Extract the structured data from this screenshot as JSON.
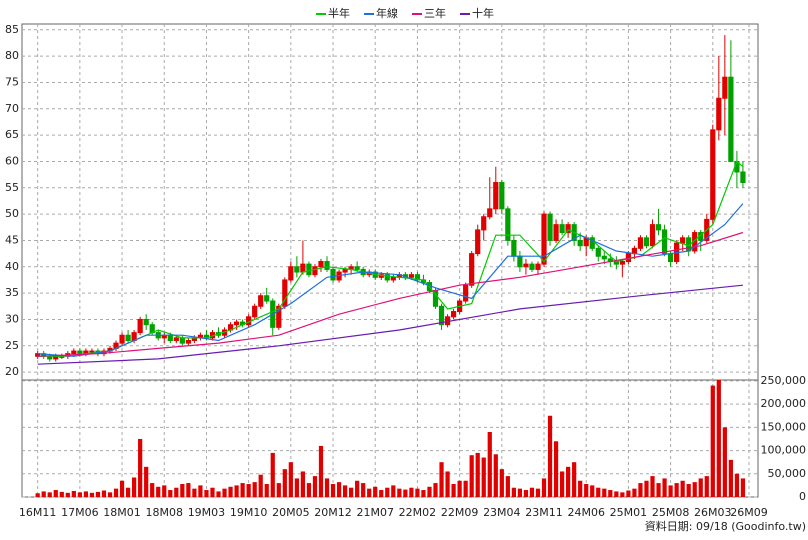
{
  "chart_data": {
    "type": "candlestick",
    "legend": "top",
    "grid": true,
    "up_color": "#e00000",
    "down_color": "#00a000",
    "note": "資料日期: 09/18 (Goodinfo.tw)",
    "xlim": [
      -2.6,
      119.5
    ],
    "xticks": [
      {
        "value": 0,
        "label": "16M11"
      },
      {
        "value": 7,
        "label": "17M06"
      },
      {
        "value": 14,
        "label": "18M01"
      },
      {
        "value": 21,
        "label": "18M08"
      },
      {
        "value": 28,
        "label": "19M03"
      },
      {
        "value": 35,
        "label": "19M10"
      },
      {
        "value": 42,
        "label": "20M05"
      },
      {
        "value": 49,
        "label": "20M12"
      },
      {
        "value": 56,
        "label": "21M07"
      },
      {
        "value": 63,
        "label": "22M02"
      },
      {
        "value": 70,
        "label": "22M09"
      },
      {
        "value": 77,
        "label": "23M04"
      },
      {
        "value": 84,
        "label": "23M11"
      },
      {
        "value": 91,
        "label": "24M06"
      },
      {
        "value": 98,
        "label": "25M01"
      },
      {
        "value": 105,
        "label": "25M08"
      },
      {
        "value": 112,
        "label": "26M03"
      },
      {
        "value": 118,
        "label": "26M09"
      }
    ],
    "ylim": [
      18.5,
      86.1
    ],
    "yticks": [
      20,
      25,
      30,
      35,
      40,
      45,
      50,
      55,
      60,
      65,
      70,
      75,
      80,
      85
    ],
    "y2lim": [
      0,
      252000
    ],
    "y2ticks": [
      {
        "value": 0,
        "label": "0"
      },
      {
        "value": 50000,
        "label": "50,000"
      },
      {
        "value": 100000,
        "label": "100,000"
      },
      {
        "value": 150000,
        "label": "150,000"
      },
      {
        "value": 200000,
        "label": "200,000"
      },
      {
        "value": 250000,
        "label": "250,000"
      }
    ],
    "ohlc": [
      [
        23,
        24,
        22.5,
        23.5
      ],
      [
        23.5,
        24,
        22.5,
        23
      ],
      [
        23,
        23.5,
        22,
        22.5
      ],
      [
        22.5,
        23.5,
        22,
        23
      ],
      [
        23,
        23.5,
        22.5,
        23
      ],
      [
        23,
        24,
        22.5,
        23.5
      ],
      [
        23.5,
        24.5,
        23,
        24
      ],
      [
        24,
        24.5,
        23,
        23.5
      ],
      [
        23.5,
        24.5,
        23,
        24
      ],
      [
        24,
        24.5,
        23.5,
        24
      ],
      [
        24,
        24.5,
        23,
        23.5
      ],
      [
        23.5,
        24.5,
        23,
        24
      ],
      [
        24,
        25,
        23.5,
        24.5
      ],
      [
        24.5,
        26,
        24,
        25.5
      ],
      [
        25.5,
        27.5,
        25,
        27
      ],
      [
        27,
        28,
        25.5,
        26
      ],
      [
        26,
        28,
        25.5,
        27.5
      ],
      [
        27.5,
        30.5,
        27,
        30
      ],
      [
        30,
        31,
        28,
        29
      ],
      [
        29,
        29.5,
        27,
        27.5
      ],
      [
        27.5,
        28,
        26,
        26.5
      ],
      [
        26.5,
        27.5,
        25.5,
        27
      ],
      [
        27,
        27.5,
        25.5,
        26
      ],
      [
        26,
        27,
        25.5,
        26.5
      ],
      [
        26.5,
        27,
        25,
        25.5
      ],
      [
        25.5,
        26.5,
        25,
        26
      ],
      [
        26,
        27,
        25.5,
        26.5
      ],
      [
        26.5,
        27.5,
        26,
        27
      ],
      [
        27,
        28,
        26,
        26.5
      ],
      [
        26.5,
        28,
        26,
        27.5
      ],
      [
        27.5,
        28.5,
        26.5,
        27
      ],
      [
        27,
        28.5,
        26.5,
        28
      ],
      [
        28,
        29.5,
        27.5,
        29
      ],
      [
        29,
        30,
        28,
        29.5
      ],
      [
        29.5,
        30,
        28.5,
        29
      ],
      [
        29,
        31,
        28.5,
        30.5
      ],
      [
        30.5,
        33,
        30,
        32.5
      ],
      [
        32.5,
        35,
        32,
        34.5
      ],
      [
        34.5,
        36,
        33,
        33.5
      ],
      [
        33.5,
        34,
        27,
        28.5
      ],
      [
        28.5,
        33,
        28,
        32.5
      ],
      [
        32.5,
        38,
        32,
        37.5
      ],
      [
        37.5,
        41,
        37,
        40
      ],
      [
        40,
        42,
        38,
        39
      ],
      [
        39,
        45,
        38.5,
        40.5
      ],
      [
        40.5,
        41,
        38,
        38.5
      ],
      [
        38.5,
        40.5,
        38,
        40
      ],
      [
        40,
        41.5,
        39,
        41
      ],
      [
        41,
        42,
        39,
        39.5
      ],
      [
        39.5,
        40,
        37,
        37.5
      ],
      [
        37.5,
        39.5,
        37,
        39
      ],
      [
        39,
        40,
        38,
        39.5
      ],
      [
        39.5,
        40.5,
        38.5,
        40
      ],
      [
        40,
        41,
        39,
        39.5
      ],
      [
        39.5,
        40,
        38,
        38.5
      ],
      [
        38.5,
        39.5,
        38,
        39
      ],
      [
        39,
        39.5,
        37.5,
        38
      ],
      [
        38,
        39,
        37.5,
        38.5
      ],
      [
        38.5,
        39,
        37,
        37.5
      ],
      [
        37.5,
        38.5,
        37,
        38
      ],
      [
        38,
        39,
        37.5,
        38.5
      ],
      [
        38.5,
        39,
        37.5,
        38
      ],
      [
        38,
        39,
        37.5,
        38.5
      ],
      [
        38.5,
        39,
        37,
        37.5
      ],
      [
        37.5,
        38.5,
        36.5,
        37
      ],
      [
        37,
        37.5,
        35,
        35.5
      ],
      [
        35.5,
        36,
        32,
        32.5
      ],
      [
        32.5,
        33,
        28,
        29
      ],
      [
        29,
        31,
        28.5,
        30.5
      ],
      [
        30.5,
        32,
        30,
        31.5
      ],
      [
        31.5,
        34,
        31,
        33.5
      ],
      [
        33.5,
        37,
        33,
        36.5
      ],
      [
        36.5,
        43,
        36,
        42.5
      ],
      [
        42.5,
        48,
        42,
        47
      ],
      [
        47,
        50,
        45,
        49.5
      ],
      [
        49.5,
        57,
        49,
        51
      ],
      [
        51,
        59,
        50,
        56
      ],
      [
        56,
        56.5,
        50,
        51
      ],
      [
        51,
        51.5,
        44,
        45
      ],
      [
        45,
        46,
        41,
        42
      ],
      [
        42,
        43,
        39,
        40
      ],
      [
        40,
        41.5,
        38.5,
        40.5
      ],
      [
        40.5,
        41,
        39,
        39.5
      ],
      [
        39.5,
        41,
        38.5,
        40.5
      ],
      [
        40.5,
        50.5,
        40,
        50
      ],
      [
        50,
        50.5,
        44,
        45
      ],
      [
        45,
        49,
        44.5,
        48
      ],
      [
        48,
        49,
        46,
        46.5
      ],
      [
        46.5,
        48.5,
        45.5,
        48
      ],
      [
        48,
        48.5,
        44,
        45
      ],
      [
        45,
        46.5,
        43,
        44
      ],
      [
        44,
        46,
        42,
        45.5
      ],
      [
        45.5,
        46,
        43,
        43.5
      ],
      [
        43.5,
        44,
        41,
        42
      ],
      [
        42,
        43,
        40.5,
        41.5
      ],
      [
        41.5,
        42.5,
        40,
        41
      ],
      [
        41,
        42,
        39.5,
        40.5
      ],
      [
        40.5,
        41.5,
        38,
        41
      ],
      [
        41,
        43,
        40.5,
        42.5
      ],
      [
        42.5,
        44,
        41.5,
        43.5
      ],
      [
        43.5,
        46,
        43,
        45.5
      ],
      [
        45.5,
        46,
        43.5,
        44
      ],
      [
        44,
        49,
        43.5,
        48
      ],
      [
        48,
        51,
        46,
        47
      ],
      [
        47,
        48,
        42,
        42.5
      ],
      [
        42.5,
        43,
        40,
        41
      ],
      [
        41,
        45,
        40.5,
        44.5
      ],
      [
        44.5,
        46,
        43,
        45.5
      ],
      [
        45.5,
        46,
        42,
        43
      ],
      [
        43,
        47,
        42.5,
        46.5
      ],
      [
        46.5,
        47,
        43,
        45
      ],
      [
        45,
        50,
        44.5,
        49
      ],
      [
        49,
        67,
        48,
        66
      ],
      [
        66,
        80,
        64,
        72
      ],
      [
        72,
        84,
        65,
        76
      ],
      [
        76,
        83,
        60,
        60
      ],
      [
        60,
        62,
        55,
        58
      ],
      [
        58,
        60,
        55,
        56
      ]
    ],
    "volume": {
      "axis": "y2",
      "color": "#e00000",
      "values": [
        8000,
        12000,
        10000,
        15000,
        11000,
        9000,
        13000,
        10000,
        12000,
        9000,
        11000,
        14000,
        10000,
        18000,
        35000,
        20000,
        42000,
        125000,
        65000,
        30000,
        22000,
        25000,
        15000,
        20000,
        28000,
        30000,
        18000,
        25000,
        15000,
        20000,
        12000,
        18000,
        22000,
        25000,
        30000,
        28000,
        32000,
        48000,
        28000,
        95000,
        30000,
        60000,
        75000,
        40000,
        55000,
        30000,
        45000,
        110000,
        40000,
        28000,
        32000,
        25000,
        20000,
        35000,
        30000,
        18000,
        22000,
        15000,
        20000,
        25000,
        18000,
        16000,
        20000,
        18000,
        15000,
        22000,
        30000,
        75000,
        55000,
        28000,
        35000,
        35000,
        90000,
        95000,
        85000,
        140000,
        92000,
        60000,
        45000,
        20000,
        18000,
        15000,
        20000,
        18000,
        40000,
        175000,
        120000,
        55000,
        65000,
        75000,
        35000,
        28000,
        25000,
        20000,
        18000,
        15000,
        12000,
        10000,
        14000,
        18000,
        30000,
        35000,
        45000,
        30000,
        40000,
        25000,
        30000,
        35000,
        28000,
        32000,
        40000,
        45000,
        240000,
        255000,
        150000,
        80000,
        50000,
        40000
      ]
    },
    "series": [
      {
        "name": "半年",
        "color": "#00cc00",
        "x": [
          0,
          4,
          8,
          12,
          16,
          20,
          24,
          28,
          32,
          36,
          40,
          44,
          48,
          52,
          56,
          60,
          64,
          68,
          72,
          76,
          80,
          84,
          88,
          92,
          96,
          100,
          104,
          108,
          112,
          116,
          117
        ],
        "values": [
          23,
          23,
          23.5,
          24,
          26,
          28,
          26.5,
          26.5,
          28,
          30,
          32,
          39,
          40,
          39.5,
          38.5,
          38,
          37.5,
          32,
          33,
          46,
          46,
          41,
          47,
          45,
          41,
          42,
          45.5,
          44,
          48,
          60,
          59
        ]
      },
      {
        "name": "年線",
        "color": "#1e6fe0",
        "x": [
          0,
          6,
          12,
          18,
          24,
          30,
          36,
          42,
          48,
          54,
          60,
          66,
          72,
          78,
          84,
          90,
          96,
          102,
          108,
          114,
          117
        ],
        "values": [
          23.5,
          23,
          24,
          27,
          27,
          26,
          29,
          33,
          38,
          39,
          38.5,
          36,
          34,
          42,
          42,
          46,
          43,
          42,
          43,
          48,
          52
        ]
      },
      {
        "name": "三年",
        "color": "#e0107a",
        "x": [
          0,
          10,
          20,
          30,
          40,
          50,
          60,
          70,
          80,
          90,
          100,
          110,
          117
        ],
        "values": [
          23,
          23.5,
          24.5,
          25.5,
          27,
          31,
          34,
          36.5,
          38,
          40,
          42,
          44,
          46.5
        ]
      },
      {
        "name": "十年",
        "color": "#6a1bb0",
        "x": [
          0,
          20,
          40,
          60,
          80,
          100,
          117
        ],
        "values": [
          21.5,
          22.5,
          25,
          28,
          32,
          34.5,
          36.5
        ]
      }
    ]
  }
}
